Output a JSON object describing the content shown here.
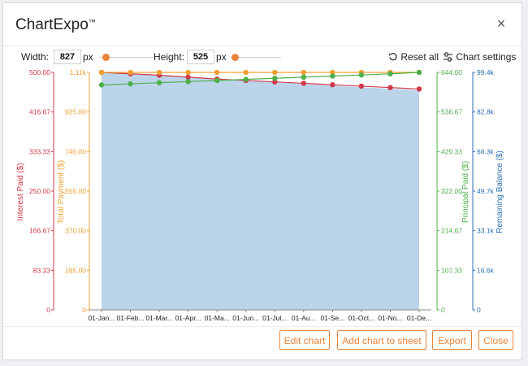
{
  "app": {
    "title": "ChartExpo",
    "title_mark": "™",
    "close_symbol": "×"
  },
  "toolbar": {
    "width_label": "Width:",
    "width_value": "827",
    "width_unit": "px",
    "height_label": "Height:",
    "height_value": "525",
    "height_unit": "px",
    "reset_label": "Reset all",
    "settings_label": "Chart settings"
  },
  "buttons": {
    "edit": "Edit chart",
    "add": "Add chart to sheet",
    "export": "Export",
    "close": "Close"
  },
  "colors": {
    "accent": "#e8853a",
    "interest": "#d0384a",
    "total": "#f0a030",
    "principal": "#4db04a",
    "balance": "#2a6fb0",
    "area_fill": "#bcd4ea"
  },
  "chart_data": {
    "type": "line",
    "categories": [
      "01-Jan...",
      "01-Feb...",
      "01-Mar...",
      "01-Apr...",
      "01-Ma...",
      "01-Jun...",
      "01-Jul...",
      "01-Au...",
      "01-Se...",
      "01-Oct...",
      "01-No...",
      "01-De..."
    ],
    "axes": {
      "interest": {
        "label": "Interest Paid ($)",
        "ticks": [
          "500.00",
          "416.67",
          "333.33",
          "250.00",
          "166.67",
          "83.33",
          "0"
        ],
        "min": 0,
        "max": 500
      },
      "total": {
        "label": "Total Payment ($)",
        "ticks": [
          "1.11k",
          "925.00",
          "740.00",
          "555.00",
          "370.00",
          "185.00",
          "0"
        ],
        "min": 0,
        "max": 1110
      },
      "principal": {
        "label": "Principal Paid ($)",
        "ticks": [
          "644.00",
          "536.67",
          "429.33",
          "322.00",
          "214.67",
          "107.33",
          "0"
        ],
        "min": 0,
        "max": 644
      },
      "balance": {
        "label": "Remaining Balance ($)",
        "ticks": [
          "99.4k",
          "82.8k",
          "66.3k",
          "49.7k",
          "33.1k",
          "16.6k",
          "0"
        ],
        "min": 0,
        "max": 99400
      }
    },
    "series": [
      {
        "name": "Interest Paid ($)",
        "axis": "interest",
        "kind": "line",
        "values": [
          500,
          497,
          494,
          490,
          486,
          483,
          480,
          477,
          474,
          471,
          468,
          465
        ]
      },
      {
        "name": "Total Payment ($)",
        "axis": "total",
        "kind": "line",
        "values": [
          1110,
          1110,
          1110,
          1110,
          1110,
          1110,
          1110,
          1110,
          1110,
          1110,
          1110,
          1110
        ]
      },
      {
        "name": "Principal Paid ($)",
        "axis": "principal",
        "kind": "line",
        "values": [
          610,
          613,
          616,
          619,
          622,
          625,
          628,
          631,
          634,
          637,
          640,
          644
        ]
      },
      {
        "name": "Remaining Balance ($)",
        "axis": "balance",
        "kind": "area",
        "values": [
          99400,
          98700,
          98000,
          97400,
          96700,
          96000,
          95300,
          94600,
          93900,
          93200,
          92600,
          91900
        ]
      }
    ],
    "grid": false
  }
}
